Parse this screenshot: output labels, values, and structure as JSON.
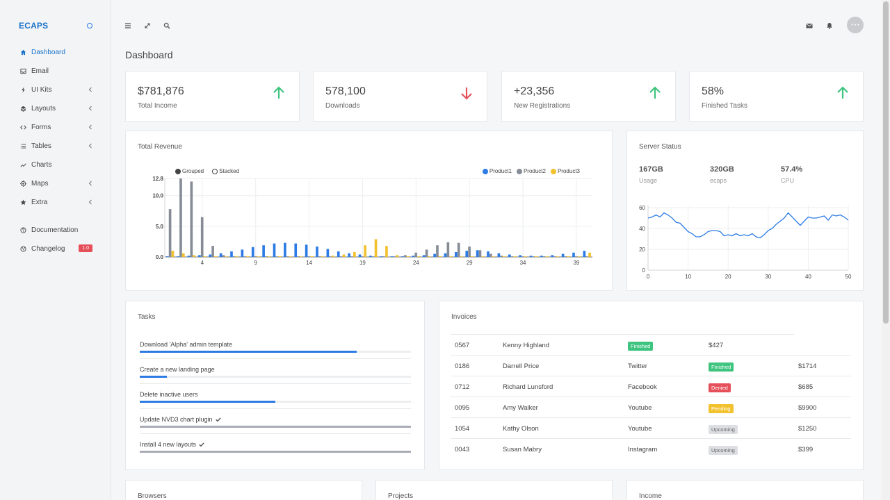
{
  "sidebar": {
    "brand": "ECAPS",
    "items": [
      {
        "label": "Dashboard",
        "icon": "home-icon",
        "active": true,
        "chevron": false
      },
      {
        "label": "Email",
        "icon": "inbox-icon",
        "active": false,
        "chevron": false
      },
      {
        "label": "UI Kits",
        "icon": "lightning-icon",
        "active": false,
        "chevron": true
      },
      {
        "label": "Layouts",
        "icon": "layers-icon",
        "active": false,
        "chevron": true
      },
      {
        "label": "Forms",
        "icon": "code-icon",
        "active": false,
        "chevron": true
      },
      {
        "label": "Tables",
        "icon": "list-icon",
        "active": false,
        "chevron": true
      },
      {
        "label": "Charts",
        "icon": "trending-icon",
        "active": false,
        "chevron": false
      },
      {
        "label": "Maps",
        "icon": "target-icon",
        "active": false,
        "chevron": true
      },
      {
        "label": "Extra",
        "icon": "star-icon",
        "active": false,
        "chevron": true
      }
    ],
    "secondary": [
      {
        "label": "Documentation",
        "icon": "help-circle-icon"
      },
      {
        "label": "Changelog",
        "icon": "globe-icon",
        "badge": "1.0"
      }
    ]
  },
  "topbar": {
    "left_icons": [
      "menu-icon",
      "expand-icon",
      "search-icon"
    ],
    "right_icons": [
      "mail-icon",
      "bell-icon"
    ],
    "avatar_text": "• • •"
  },
  "page": {
    "title": "Dashboard"
  },
  "stats": [
    {
      "value": "$781,876",
      "label": "Total Income",
      "trend": "up"
    },
    {
      "value": "578,100",
      "label": "Downloads",
      "trend": "down"
    },
    {
      "value": "+23,356",
      "label": "New Registrations",
      "trend": "up"
    },
    {
      "value": "58%",
      "label": "Finished Tasks",
      "trend": "up"
    }
  ],
  "revenue": {
    "title": "Total Revenue",
    "mode_grouped": "Grouped",
    "mode_stacked": "Stacked",
    "legend": [
      "Product1",
      "Product2",
      "Product3"
    ]
  },
  "server": {
    "title": "Server Status",
    "metrics": [
      {
        "value": "167GB",
        "label": "Usage"
      },
      {
        "value": "320GB",
        "label": "ecaps"
      },
      {
        "value": "57.4%",
        "label": "CPU"
      }
    ]
  },
  "tasks": {
    "title": "Tasks",
    "items": [
      {
        "label": "Download 'Alpha' admin template",
        "progress": 0.8,
        "done": false
      },
      {
        "label": "Create a new landing page",
        "progress": 0.1,
        "done": false
      },
      {
        "label": "Delete inactive users",
        "progress": 0.5,
        "done": false
      },
      {
        "label": "Update NVD3 chart plugin",
        "progress": 1.0,
        "done": true
      },
      {
        "label": "Install 4 new layouts",
        "progress": 1.0,
        "done": true
      }
    ]
  },
  "invoices": {
    "title": "Invoices",
    "rows": [
      {
        "id": "0567",
        "name": "Kenny Highland",
        "source": "",
        "status": "Finished",
        "amount": "$427"
      },
      {
        "id": "0186",
        "name": "Darrell Price",
        "source": "Twitter",
        "status": "Finished",
        "amount": "$1714"
      },
      {
        "id": "0712",
        "name": "Richard Lunsford",
        "source": "Facebook",
        "status": "Denied",
        "amount": "$685"
      },
      {
        "id": "0095",
        "name": "Amy Walker",
        "source": "Youtube",
        "status": "Pending",
        "amount": "$9900"
      },
      {
        "id": "1054",
        "name": "Kathy Olson",
        "source": "Youtube",
        "status": "Upcoming",
        "amount": "$1250"
      },
      {
        "id": "0043",
        "name": "Susan Mabry",
        "source": "Instagram",
        "status": "Upcoming",
        "amount": "$399"
      }
    ]
  },
  "bottom_cards": [
    "Browsers",
    "Projects",
    "Income"
  ],
  "colors": {
    "accent": "#1a73c9",
    "product1": "#2c7be5",
    "product2": "#868c96",
    "product3": "#f2c12e",
    "up": "#3dc47e",
    "down": "#e6505a",
    "finished": "#3dc47e",
    "denied": "#e6505a",
    "pending": "#f2c12e",
    "upcoming": "#dcdee2"
  },
  "chart_data": [
    {
      "type": "bar",
      "title": "Total Revenue",
      "x": [
        1,
        2,
        3,
        4,
        5,
        6,
        7,
        8,
        9,
        10,
        11,
        12,
        13,
        14,
        15,
        16,
        17,
        18,
        19,
        20,
        21,
        22,
        23,
        24,
        25,
        26,
        27,
        28,
        29,
        30,
        31,
        32,
        33,
        34,
        35,
        36,
        37,
        38,
        39,
        40
      ],
      "xticks": [
        4,
        9,
        14,
        19,
        24,
        29,
        34,
        39
      ],
      "yticks": [
        0.0,
        5.0,
        10.0,
        12.8
      ],
      "ylim": [
        0,
        12.8
      ],
      "legend_position": "top-right",
      "series": [
        {
          "name": "Product1",
          "values": [
            0.1,
            0.1,
            0.2,
            0.3,
            0.4,
            0.6,
            0.9,
            1.2,
            1.6,
            1.9,
            2.2,
            2.3,
            2.2,
            2.0,
            1.7,
            1.3,
            0.9,
            0.6,
            0.4,
            0.2,
            0.1,
            0.1,
            0.1,
            0.2,
            0.3,
            0.5,
            0.6,
            0.8,
            1.0,
            1.1,
            0.9,
            0.6,
            0.4,
            0.3,
            0.2,
            0.2,
            0.3,
            0.5,
            0.7,
            1.0
          ]
        },
        {
          "name": "Product2",
          "values": [
            7.8,
            12.8,
            12.3,
            6.5,
            1.8,
            0.3,
            0.1,
            0.1,
            0.1,
            0.1,
            0.1,
            0.1,
            0.1,
            0.1,
            0.1,
            0.1,
            0.1,
            0.1,
            0.1,
            0.1,
            0.1,
            0.1,
            0.3,
            0.7,
            1.2,
            1.9,
            2.4,
            2.3,
            1.7,
            1.1,
            0.5,
            0.2,
            0.1,
            0.1,
            0.1,
            0.1,
            0.1,
            0.1,
            0.1,
            0.1
          ]
        },
        {
          "name": "Product3",
          "values": [
            1.0,
            0.6,
            0.3,
            0.1,
            0.1,
            0.1,
            0.1,
            0.1,
            0.1,
            0.1,
            0.1,
            0.1,
            0.1,
            0.1,
            0.1,
            0.2,
            0.4,
            0.8,
            1.9,
            2.9,
            1.8,
            0.3,
            0.1,
            0.1,
            0.1,
            0.1,
            0.1,
            0.1,
            0.1,
            0.1,
            0.1,
            0.1,
            0.1,
            0.1,
            0.1,
            0.1,
            0.1,
            0.1,
            0.1,
            0.7
          ]
        }
      ]
    },
    {
      "type": "line",
      "title": "Server Status",
      "xlim": [
        0,
        50
      ],
      "ylim": [
        0,
        60
      ],
      "xticks": [
        0,
        10,
        20,
        30,
        40,
        50
      ],
      "yticks": [
        0,
        20,
        40,
        60
      ],
      "series": [
        {
          "name": "",
          "x": [
            0,
            1,
            2,
            3,
            4,
            5,
            6,
            7,
            8,
            9,
            10,
            11,
            12,
            13,
            14,
            15,
            16,
            17,
            18,
            19,
            20,
            21,
            22,
            23,
            24,
            25,
            26,
            27,
            28,
            29,
            30,
            31,
            32,
            33,
            34,
            35,
            36,
            37,
            38,
            39,
            40,
            41,
            42,
            43,
            44,
            45,
            46,
            47,
            48,
            49,
            50
          ],
          "y": [
            50,
            51,
            53,
            51,
            55,
            53,
            50,
            46,
            45,
            41,
            37,
            35,
            32,
            32,
            34,
            37,
            38,
            38,
            37,
            33,
            34,
            33,
            35,
            33,
            34,
            33,
            35,
            32,
            31,
            34,
            38,
            40,
            44,
            47,
            50,
            55,
            51,
            47,
            43,
            47,
            51,
            50,
            50,
            51,
            52,
            48,
            53,
            52,
            53,
            51,
            48
          ]
        }
      ]
    }
  ]
}
